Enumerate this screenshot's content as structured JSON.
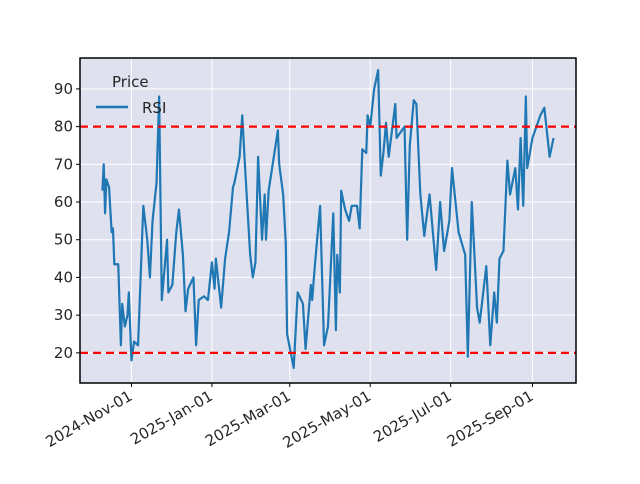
{
  "chart_data": {
    "type": "line",
    "legend_title": "Price",
    "legend_loc": "upper left",
    "grid": true,
    "x": [
      "2024-10-10",
      "2024-10-11",
      "2024-10-12",
      "2024-10-13",
      "2024-10-15",
      "2024-10-17",
      "2024-10-18",
      "2024-10-19",
      "2024-10-22",
      "2024-10-24",
      "2024-10-25",
      "2024-10-27",
      "2024-10-29",
      "2024-10-30",
      "2024-11-01",
      "2024-11-03",
      "2024-11-06",
      "2024-11-10",
      "2024-11-13",
      "2024-11-15",
      "2024-11-17",
      "2024-11-20",
      "2024-11-22",
      "2024-11-24",
      "2024-11-28",
      "2024-11-29",
      "2024-12-02",
      "2024-12-05",
      "2024-12-07",
      "2024-12-10",
      "2024-12-12",
      "2024-12-14",
      "2024-12-18",
      "2024-12-20",
      "2024-12-22",
      "2024-12-26",
      "2024-12-29",
      "2025-01-01",
      "2025-01-03",
      "2025-01-04",
      "2025-01-08",
      "2025-01-11",
      "2025-01-14",
      "2025-01-17",
      "2025-01-18",
      "2025-01-22",
      "2025-01-24",
      "2025-01-26",
      "2025-01-30",
      "2025-02-01",
      "2025-02-03",
      "2025-02-05",
      "2025-02-08",
      "2025-02-10",
      "2025-02-11",
      "2025-02-13",
      "2025-02-20",
      "2025-02-21",
      "2025-02-24",
      "2025-02-26",
      "2025-02-27",
      "2025-03-04",
      "2025-03-07",
      "2025-03-11",
      "2025-03-13",
      "2025-03-17",
      "2025-03-18",
      "2025-03-20",
      "2025-03-24",
      "2025-03-27",
      "2025-03-30",
      "2025-04-03",
      "2025-04-05",
      "2025-04-06",
      "2025-04-08",
      "2025-04-09",
      "2025-04-12",
      "2025-04-15",
      "2025-04-17",
      "2025-04-21",
      "2025-04-23",
      "2025-04-25",
      "2025-04-28",
      "2025-04-29",
      "2025-05-01",
      "2025-05-04",
      "2025-05-07",
      "2025-05-09",
      "2025-05-11",
      "2025-05-13",
      "2025-05-15",
      "2025-05-20",
      "2025-05-21",
      "2025-05-27",
      "2025-05-29",
      "2025-05-31",
      "2025-06-03",
      "2025-06-05",
      "2025-06-08",
      "2025-06-11",
      "2025-06-12",
      "2025-06-15",
      "2025-06-20",
      "2025-06-23",
      "2025-06-26",
      "2025-06-30",
      "2025-07-02",
      "2025-07-07",
      "2025-07-12",
      "2025-07-14",
      "2025-07-17",
      "2025-07-21",
      "2025-07-23",
      "2025-07-28",
      "2025-07-31",
      "2025-08-03",
      "2025-08-05",
      "2025-08-07",
      "2025-08-10",
      "2025-08-13",
      "2025-08-15",
      "2025-08-19",
      "2025-08-21",
      "2025-08-23",
      "2025-08-25",
      "2025-08-27",
      "2025-08-28",
      "2025-09-01",
      "2025-09-07",
      "2025-09-10",
      "2025-09-14",
      "2025-09-17"
    ],
    "series": [
      {
        "name": "RSI",
        "color": "#1f77b4",
        "values": [
          63,
          70,
          57,
          66,
          64,
          52,
          53,
          43.5,
          43.5,
          22,
          33,
          27,
          30,
          36,
          18,
          23,
          22,
          59,
          50,
          40,
          55,
          65,
          88,
          34,
          50,
          36,
          38,
          52,
          58,
          46,
          31,
          37,
          40,
          22,
          34,
          35,
          34,
          44,
          37,
          45,
          32,
          45,
          52,
          64,
          65,
          72,
          83,
          70,
          46,
          40,
          44,
          72,
          50,
          62,
          50,
          63,
          79,
          70,
          62,
          49,
          25,
          16,
          36,
          33,
          21,
          38,
          34,
          43,
          59,
          22,
          27,
          57,
          26,
          46,
          36,
          63,
          58,
          55,
          59,
          59,
          53,
          74,
          73,
          83,
          80,
          90,
          95,
          67,
          73,
          81,
          72,
          86,
          77,
          80,
          50,
          75,
          87,
          86,
          62,
          51,
          54,
          62,
          42,
          60,
          47,
          55,
          69,
          52,
          46,
          19,
          60,
          32,
          28,
          43,
          22,
          36,
          28,
          45,
          47,
          71,
          62,
          69,
          58,
          77,
          59,
          88,
          69,
          77,
          83,
          85,
          72,
          77
        ]
      }
    ],
    "reference_lines": [
      80,
      20
    ],
    "reference_color": "#ff0000",
    "xlim": [
      "2024-09-23",
      "2025-10-04"
    ],
    "xticks": [
      {
        "value": "2024-11-01",
        "label": "2024-Nov-01"
      },
      {
        "value": "2025-01-01",
        "label": "2025-Jan-01"
      },
      {
        "value": "2025-03-01",
        "label": "2025-Mar-01"
      },
      {
        "value": "2025-05-01",
        "label": "2025-May-01"
      },
      {
        "value": "2025-07-01",
        "label": "2025-Jul-01"
      },
      {
        "value": "2025-09-01",
        "label": "2025-Sep-01"
      }
    ],
    "ylim": [
      12,
      98.2
    ],
    "yticks": [
      20,
      30,
      40,
      50,
      60,
      70,
      80,
      90
    ]
  }
}
